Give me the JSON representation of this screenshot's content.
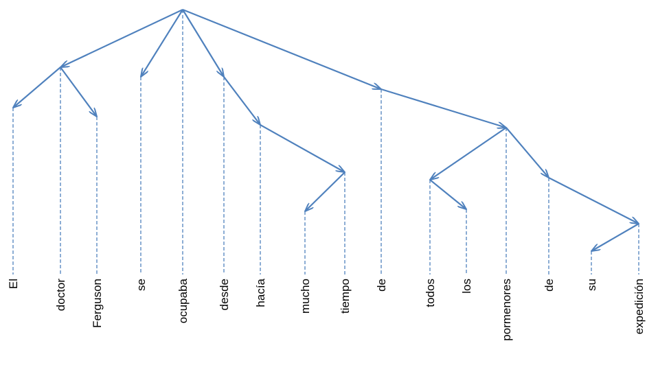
{
  "diagram": {
    "type": "dependency-tree",
    "colors": {
      "line": "#4f81bd",
      "text": "#000000",
      "background": "#ffffff"
    },
    "tokens": [
      {
        "id": "El",
        "text": "El"
      },
      {
        "id": "doctor",
        "text": "doctor"
      },
      {
        "id": "Ferguson",
        "text": "Ferguson"
      },
      {
        "id": "se",
        "text": "se"
      },
      {
        "id": "ocupaba",
        "text": "ocupaba"
      },
      {
        "id": "desde",
        "text": "desde"
      },
      {
        "id": "hacia",
        "text": "hacía"
      },
      {
        "id": "mucho",
        "text": "mucho"
      },
      {
        "id": "tiempo",
        "text": "tiempo"
      },
      {
        "id": "de1",
        "text": "de"
      },
      {
        "id": "todos",
        "text": "todos"
      },
      {
        "id": "los",
        "text": "los"
      },
      {
        "id": "pormenores",
        "text": "pormenores"
      },
      {
        "id": "de2",
        "text": "de"
      },
      {
        "id": "su",
        "text": "su"
      },
      {
        "id": "expedicion",
        "text": "expedición"
      }
    ],
    "edges": [
      {
        "from": "ocupaba",
        "to": "doctor"
      },
      {
        "from": "ocupaba",
        "to": "se"
      },
      {
        "from": "ocupaba",
        "to": "desde"
      },
      {
        "from": "ocupaba",
        "to": "de1"
      },
      {
        "from": "doctor",
        "to": "El"
      },
      {
        "from": "doctor",
        "to": "Ferguson"
      },
      {
        "from": "desde",
        "to": "hacia"
      },
      {
        "from": "hacia",
        "to": "tiempo"
      },
      {
        "from": "tiempo",
        "to": "mucho"
      },
      {
        "from": "de1",
        "to": "pormenores"
      },
      {
        "from": "pormenores",
        "to": "todos"
      },
      {
        "from": "pormenores",
        "to": "de2"
      },
      {
        "from": "todos",
        "to": "los"
      },
      {
        "from": "de2",
        "to": "expedicion"
      },
      {
        "from": "expedicion",
        "to": "su"
      }
    ]
  }
}
